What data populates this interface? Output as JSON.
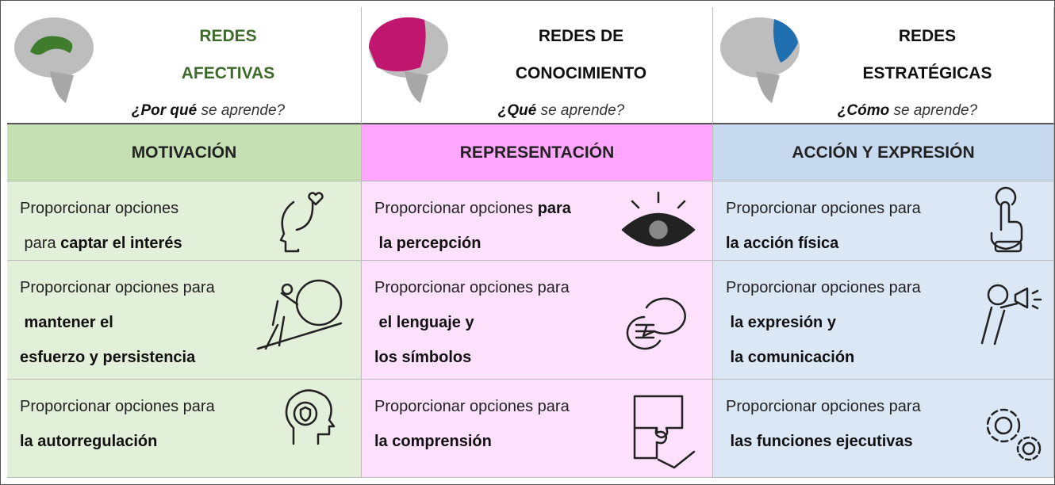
{
  "columns": [
    {
      "title": [
        "REDES",
        "AFECTIVAS"
      ],
      "title_color": "#3e6b2b",
      "question": [
        {
          "text": "¿Por qué",
          "bold": true
        },
        {
          "text": " se aprende?",
          "bold": false
        }
      ],
      "principle": "MOTIVACIÓN",
      "header_color": "#c5e0b3",
      "body_color": "#e2efd9",
      "brain_color": "#3f7d2c",
      "rows": [
        [
          [
            {
              "text": "Proporcionar opciones",
              "bold": false
            }
          ],
          [
            {
              "text": " para ",
              "bold": false
            },
            {
              "text": "captar el interés",
              "bold": true
            }
          ]
        ],
        [
          [
            {
              "text": "Proporcionar opciones para",
              "bold": false
            }
          ],
          [
            {
              "text": " mantener el",
              "bold": true
            }
          ],
          [
            {
              "text": "esfuerzo y persistencia",
              "bold": true
            }
          ]
        ],
        [
          [
            {
              "text": "Proporcionar opciones para",
              "bold": false
            }
          ],
          [
            {
              "text": "la autorregulación",
              "bold": true
            }
          ]
        ]
      ]
    },
    {
      "title": [
        "REDES DE",
        "CONOCIMIENTO"
      ],
      "title_color": "#111111",
      "question": [
        {
          "text": "¿Qué",
          "bold": true
        },
        {
          "text": " se aprende?",
          "bold": false
        }
      ],
      "principle": "REPRESENTACIÓN",
      "header_color": "#ffa6ff",
      "body_color": "#fde0fb",
      "brain_color": "#c0166e",
      "rows": [
        [
          [
            {
              "text": "Proporcionar opciones ",
              "bold": false
            },
            {
              "text": "para",
              "bold": true
            }
          ],
          [
            {
              "text": " la percepción",
              "bold": true
            }
          ]
        ],
        [
          [
            {
              "text": "Proporcionar opciones para",
              "bold": false
            }
          ],
          [
            {
              "text": " el lenguaje y",
              "bold": true
            }
          ],
          [
            {
              "text": "los símbolos",
              "bold": true
            }
          ]
        ],
        [
          [
            {
              "text": "Proporcionar opciones para",
              "bold": false
            }
          ],
          [
            {
              "text": "la comprensión",
              "bold": true
            }
          ]
        ]
      ]
    },
    {
      "title": [
        "REDES",
        "ESTRATÉGICAS"
      ],
      "title_color": "#111111",
      "question": [
        {
          "text": "¿Cómo",
          "bold": true
        },
        {
          "text": " se aprende?",
          "bold": false
        }
      ],
      "principle": "ACCIÓN Y EXPRESIÓN",
      "header_color": "#c6d9ef",
      "body_color": "#dbe7f5",
      "brain_color": "#1f6fb0",
      "rows": [
        [
          [
            {
              "text": "Proporcionar opciones para",
              "bold": false
            }
          ],
          [
            {
              "text": "la acción física",
              "bold": true
            }
          ]
        ],
        [
          [
            {
              "text": "Proporcionar opciones para",
              "bold": false
            }
          ],
          [
            {
              "text": " la expresión y",
              "bold": true
            }
          ],
          [
            {
              "text": " la comunicación",
              "bold": true
            }
          ]
        ],
        [
          [
            {
              "text": "Proporcionar opciones para",
              "bold": false
            }
          ],
          [
            {
              "text": " las funciones ejecutivas",
              "bold": true
            }
          ]
        ]
      ]
    }
  ]
}
